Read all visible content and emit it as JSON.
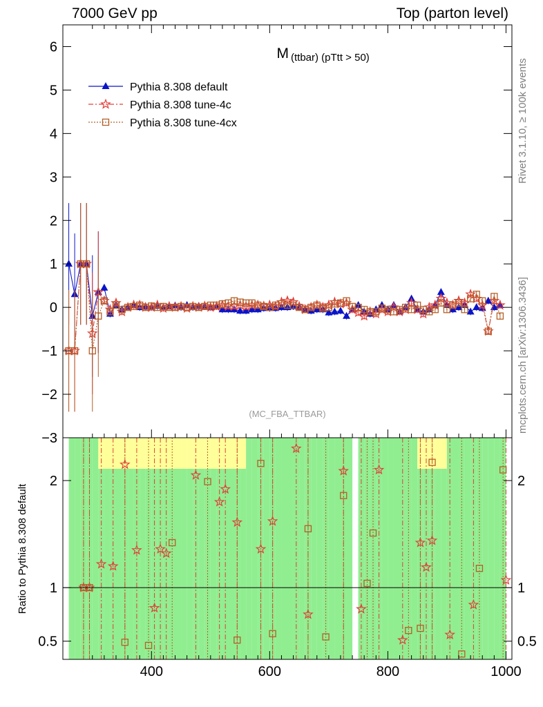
{
  "header": {
    "left": "7000 GeV pp",
    "right": "Top (parton level)"
  },
  "side_labels": {
    "rivet": "Rivet 3.1.10, ≥ 100k events",
    "mcplots": "mcplots.cern.ch [arXiv:1306.3436]"
  },
  "colors": {
    "default": "#0a14c8",
    "tune4c": "#e0403a",
    "tune4cx": "#b45f28",
    "band_green": "#90ee90",
    "band_yellow": "#ffff99"
  },
  "chart_data": [
    {
      "type": "line",
      "title": "M",
      "title_sub": "(ttbar) (pTtt > 50)",
      "watermark": "(MC_FBA_TTBAR)",
      "xlim": [
        250,
        1010
      ],
      "ylim": [
        -3,
        6.5
      ],
      "yticks": [
        -3,
        -2,
        -1,
        0,
        1,
        2,
        3,
        4,
        5,
        6
      ],
      "legend_position": "top-left",
      "series": [
        {
          "name": "Pythia 8.308 default",
          "marker": "triangle",
          "x": [
            260,
            270,
            280,
            290,
            300,
            310,
            320,
            330,
            340,
            350,
            360,
            370,
            380,
            390,
            400,
            410,
            420,
            430,
            440,
            450,
            460,
            470,
            480,
            490,
            500,
            510,
            520,
            530,
            540,
            550,
            560,
            570,
            580,
            590,
            600,
            610,
            620,
            630,
            640,
            650,
            660,
            670,
            680,
            690,
            700,
            710,
            720,
            730,
            740,
            750,
            760,
            770,
            780,
            790,
            800,
            810,
            820,
            830,
            840,
            850,
            860,
            870,
            880,
            890,
            900,
            910,
            920,
            930,
            940,
            950,
            960,
            970,
            980,
            990
          ],
          "y": [
            1.0,
            0.3,
            1.0,
            1.0,
            -0.2,
            0.35,
            0.45,
            -0.15,
            0.05,
            -0.05,
            0.0,
            0.05,
            0.0,
            0.02,
            0.0,
            0.03,
            0.0,
            0.02,
            0.04,
            0.0,
            0.05,
            0.0,
            0.03,
            0.02,
            0.0,
            0.02,
            -0.05,
            -0.05,
            -0.05,
            -0.08,
            -0.08,
            -0.05,
            -0.05,
            -0.02,
            -0.02,
            -0.02,
            0.0,
            0.0,
            0.02,
            0.0,
            -0.05,
            -0.08,
            -0.05,
            -0.05,
            -0.12,
            -0.1,
            -0.08,
            -0.2,
            -0.05,
            0.05,
            -0.1,
            -0.15,
            -0.05,
            0.05,
            -0.05,
            0.05,
            -0.1,
            0.0,
            0.2,
            -0.05,
            -0.1,
            -0.05,
            0.05,
            0.35,
            0.05,
            -0.05,
            0.0,
            0.05,
            -0.1,
            0.0,
            -0.02,
            0.15,
            0.0,
            0.05
          ]
        },
        {
          "name": "Pythia 8.308 tune-4c",
          "marker": "star",
          "x": [
            260,
            270,
            280,
            290,
            300,
            310,
            320,
            330,
            340,
            350,
            360,
            370,
            380,
            390,
            400,
            410,
            420,
            430,
            440,
            450,
            460,
            470,
            480,
            490,
            500,
            510,
            520,
            530,
            540,
            550,
            560,
            570,
            580,
            590,
            600,
            610,
            620,
            630,
            640,
            650,
            660,
            670,
            680,
            690,
            700,
            710,
            720,
            730,
            740,
            750,
            760,
            770,
            780,
            790,
            800,
            810,
            820,
            830,
            840,
            850,
            860,
            870,
            880,
            890,
            900,
            910,
            920,
            930,
            940,
            950,
            960,
            970,
            980,
            990
          ],
          "y": [
            -1.0,
            -1.0,
            1.0,
            1.0,
            -0.6,
            0.35,
            0.15,
            -0.05,
            0.1,
            -0.1,
            0.0,
            0.05,
            0.05,
            0.0,
            0.0,
            0.05,
            -0.02,
            0.02,
            0.0,
            0.02,
            -0.02,
            0.02,
            0.0,
            0.03,
            0.0,
            0.02,
            0.05,
            0.03,
            0.03,
            0.05,
            0.02,
            0.05,
            0.05,
            0.03,
            0.05,
            0.02,
            0.12,
            0.15,
            0.12,
            0.02,
            -0.05,
            0.0,
            0.05,
            0.0,
            0.05,
            0.12,
            0.08,
            0.1,
            -0.05,
            -0.12,
            -0.2,
            -0.1,
            -0.15,
            -0.05,
            -0.1,
            0.0,
            -0.1,
            -0.05,
            0.1,
            -0.05,
            -0.15,
            0.0,
            0.05,
            0.2,
            0.1,
            0.05,
            0.15,
            0.1,
            0.3,
            0.2,
            0.05,
            -0.55,
            0.15,
            0.05
          ]
        },
        {
          "name": "Pythia 8.308 tune-4cx",
          "marker": "open-square",
          "x": [
            260,
            270,
            280,
            290,
            300,
            310,
            320,
            330,
            340,
            350,
            360,
            370,
            380,
            390,
            400,
            410,
            420,
            430,
            440,
            450,
            460,
            470,
            480,
            490,
            500,
            510,
            520,
            530,
            540,
            550,
            560,
            570,
            580,
            590,
            600,
            610,
            620,
            630,
            640,
            650,
            660,
            670,
            680,
            690,
            700,
            710,
            720,
            730,
            740,
            750,
            760,
            770,
            780,
            790,
            800,
            810,
            820,
            830,
            840,
            850,
            860,
            870,
            880,
            890,
            900,
            910,
            920,
            930,
            940,
            950,
            960,
            970,
            980,
            990
          ],
          "y": [
            -1.0,
            -1.0,
            1.0,
            1.0,
            -1.0,
            -0.2,
            0.15,
            -0.1,
            0.05,
            -0.05,
            0.0,
            0.02,
            0.05,
            0.0,
            0.03,
            0.0,
            0.02,
            0.0,
            0.0,
            0.02,
            0.0,
            0.02,
            0.0,
            0.02,
            0.05,
            0.05,
            0.08,
            0.1,
            0.15,
            0.12,
            0.1,
            0.1,
            0.05,
            0.02,
            0.0,
            0.05,
            0.08,
            0.05,
            0.05,
            0.0,
            -0.05,
            0.0,
            0.05,
            -0.02,
            0.0,
            0.08,
            0.1,
            0.15,
            0.02,
            0.0,
            -0.05,
            -0.1,
            -0.1,
            -0.02,
            -0.05,
            -0.1,
            -0.05,
            0.0,
            -0.05,
            0.05,
            -0.05,
            -0.1,
            -0.05,
            0.1,
            -0.05,
            0.05,
            0.1,
            -0.05,
            0.2,
            0.3,
            0.15,
            -0.55,
            0.25,
            -0.2
          ]
        }
      ]
    },
    {
      "type": "line",
      "ylabel": "Ratio to Pythia 8.308 default",
      "xlim": [
        250,
        1010
      ],
      "ylim": [
        0.33,
        2.4
      ],
      "xticks": [
        400,
        600,
        800,
        1000
      ],
      "yticks": [
        0.5,
        1,
        2
      ],
      "reference_line": 1,
      "series": [
        {
          "name": "Pythia 8.308 tune-4c",
          "marker": "star",
          "x": [
            285,
            295,
            315,
            335,
            355,
            375,
            405,
            415,
            425,
            475,
            515,
            525,
            545,
            585,
            605,
            645,
            665,
            725,
            755,
            785,
            825,
            855,
            865,
            875,
            905,
            945,
            1000
          ],
          "y": [
            1.0,
            1.0,
            1.22,
            1.2,
            2.15,
            1.35,
            0.81,
            1.36,
            1.32,
            2.05,
            1.8,
            1.92,
            1.61,
            1.36,
            1.62,
            2.3,
            0.75,
            2.09,
            0.8,
            2.1,
            0.51,
            1.42,
            1.19,
            1.44,
            0.56,
            0.84,
            1.07
          ]
        },
        {
          "name": "Pythia 8.308 tune-4cx",
          "marker": "open-square",
          "x": [
            285,
            295,
            355,
            395,
            435,
            495,
            545,
            585,
            605,
            665,
            695,
            725,
            765,
            775,
            835,
            855,
            875,
            925,
            955,
            995
          ],
          "y": [
            1.0,
            1.0,
            0.49,
            0.46,
            1.42,
            1.99,
            0.51,
            2.16,
            0.57,
            1.55,
            0.54,
            1.86,
            1.04,
            1.51,
            0.6,
            0.62,
            2.17,
            0.38,
            1.18,
            2.1
          ]
        }
      ]
    }
  ]
}
